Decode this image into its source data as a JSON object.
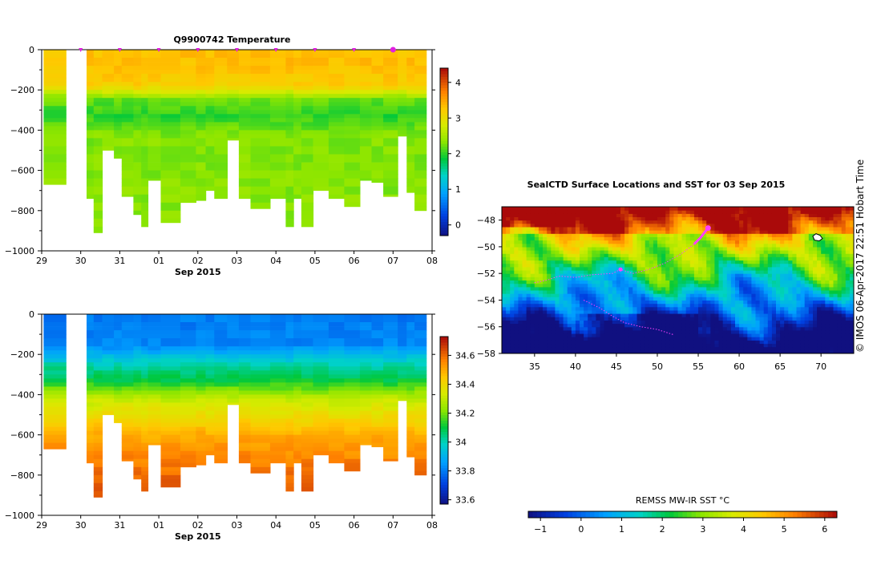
{
  "credit": "© IMOS 06-Apr-2017 22:51 Hobart Time",
  "chart_data": [
    {
      "id": "temperature",
      "type": "heatmap",
      "title": "Q9900742  Temperature",
      "xlabel": "Sep 2015",
      "ylabel": "",
      "xticks": [
        {
          "v": 29,
          "label": "29"
        },
        {
          "v": 30,
          "label": "30"
        },
        {
          "v": 31,
          "label": "31"
        },
        {
          "v": 32,
          "label": "01"
        },
        {
          "v": 33,
          "label": "02"
        },
        {
          "v": 34,
          "label": "03"
        },
        {
          "v": 35,
          "label": "04"
        },
        {
          "v": 36,
          "label": "05"
        },
        {
          "v": 37,
          "label": "06"
        },
        {
          "v": 38,
          "label": "07"
        },
        {
          "v": 39,
          "label": "08"
        }
      ],
      "xlim": [
        29,
        39
      ],
      "ylim": [
        -1000,
        0
      ],
      "yticks": [
        0,
        -200,
        -400,
        -600,
        -800,
        -1000
      ],
      "profile_markers": [
        30,
        31,
        32,
        33,
        34,
        35,
        36,
        37,
        38
      ],
      "current_marker": 38,
      "profiles": [
        {
          "t0": 29.05,
          "t1": 29.62,
          "depth": 670
        },
        {
          "t0": 30.15,
          "t1": 30.33,
          "depth": 740
        },
        {
          "t0": 30.33,
          "t1": 30.55,
          "depth": 910
        },
        {
          "t0": 30.55,
          "t1": 30.85,
          "depth": 500
        },
        {
          "t0": 30.85,
          "t1": 31.05,
          "depth": 540
        },
        {
          "t0": 31.05,
          "t1": 31.35,
          "depth": 730
        },
        {
          "t0": 31.35,
          "t1": 31.55,
          "depth": 820
        },
        {
          "t0": 31.55,
          "t1": 31.72,
          "depth": 880
        },
        {
          "t0": 31.72,
          "t1": 32.05,
          "depth": 650
        },
        {
          "t0": 32.05,
          "t1": 32.55,
          "depth": 860
        },
        {
          "t0": 32.55,
          "t1": 32.95,
          "depth": 760
        },
        {
          "t0": 32.95,
          "t1": 33.2,
          "depth": 750
        },
        {
          "t0": 33.2,
          "t1": 33.42,
          "depth": 700
        },
        {
          "t0": 33.42,
          "t1": 33.75,
          "depth": 740
        },
        {
          "t0": 33.75,
          "t1": 34.05,
          "depth": 450
        },
        {
          "t0": 34.05,
          "t1": 34.35,
          "depth": 740
        },
        {
          "t0": 34.35,
          "t1": 34.85,
          "depth": 790
        },
        {
          "t0": 34.85,
          "t1": 35.25,
          "depth": 740
        },
        {
          "t0": 35.25,
          "t1": 35.45,
          "depth": 880
        },
        {
          "t0": 35.45,
          "t1": 35.65,
          "depth": 740
        },
        {
          "t0": 35.65,
          "t1": 35.95,
          "depth": 880
        },
        {
          "t0": 35.95,
          "t1": 36.35,
          "depth": 700
        },
        {
          "t0": 36.35,
          "t1": 36.75,
          "depth": 740
        },
        {
          "t0": 36.75,
          "t1": 37.15,
          "depth": 780
        },
        {
          "t0": 37.15,
          "t1": 37.45,
          "depth": 650
        },
        {
          "t0": 37.45,
          "t1": 37.75,
          "depth": 660
        },
        {
          "t0": 37.75,
          "t1": 38.12,
          "depth": 730
        },
        {
          "t0": 38.12,
          "t1": 38.35,
          "depth": 430
        },
        {
          "t0": 38.35,
          "t1": 38.55,
          "depth": 710
        },
        {
          "t0": 38.55,
          "t1": 38.85,
          "depth": 800
        }
      ],
      "colorbar": {
        "min": -0.3,
        "max": 4.4,
        "ticks": [
          0,
          1,
          2,
          3,
          4
        ],
        "tick_labels": [
          "0",
          "1",
          "2",
          "3",
          "4"
        ]
      },
      "profile_model": [
        [
          0,
          3.3
        ],
        [
          60,
          3.35
        ],
        [
          180,
          3.2
        ],
        [
          250,
          2.2
        ],
        [
          330,
          2.0
        ],
        [
          420,
          2.3
        ],
        [
          1000,
          2.35
        ]
      ]
    },
    {
      "id": "salinity",
      "type": "heatmap",
      "title": "",
      "xlabel": "Sep 2015",
      "ylabel": "",
      "xticks": [
        {
          "v": 29,
          "label": "29"
        },
        {
          "v": 30,
          "label": "30"
        },
        {
          "v": 31,
          "label": "31"
        },
        {
          "v": 32,
          "label": "01"
        },
        {
          "v": 33,
          "label": "02"
        },
        {
          "v": 34,
          "label": "03"
        },
        {
          "v": 35,
          "label": "04"
        },
        {
          "v": 36,
          "label": "05"
        },
        {
          "v": 37,
          "label": "06"
        },
        {
          "v": 38,
          "label": "07"
        },
        {
          "v": 39,
          "label": "08"
        }
      ],
      "xlim": [
        29,
        39
      ],
      "ylim": [
        -1000,
        0
      ],
      "yticks": [
        0,
        -200,
        -400,
        -600,
        -800,
        -1000
      ],
      "colorbar": {
        "min": 33.57,
        "max": 34.73,
        "ticks": [
          33.6,
          33.8,
          34,
          34.2,
          34.4,
          34.6
        ],
        "tick_labels": [
          "33.6",
          "33.8",
          "34",
          "34.2",
          "34.4",
          "34.6"
        ]
      },
      "profile_model": [
        [
          0,
          33.8
        ],
        [
          150,
          33.82
        ],
        [
          260,
          34.02
        ],
        [
          330,
          34.1
        ],
        [
          420,
          34.3
        ],
        [
          600,
          34.5
        ],
        [
          800,
          34.6
        ],
        [
          1000,
          34.66
        ]
      ]
    },
    {
      "id": "sst_map",
      "type": "heatmap",
      "title": "SealCTD Surface Locations and SST for 03 Sep 2015",
      "xlabel": "",
      "ylabel": "",
      "xlim": [
        31,
        74
      ],
      "ylim": [
        -58,
        -47
      ],
      "xticks": [
        35,
        40,
        45,
        50,
        55,
        60,
        65,
        70
      ],
      "yticks": [
        -48,
        -50,
        -52,
        -54,
        -56,
        -58
      ],
      "colorbar_label": "REMSS MW-IR SST °C",
      "colorbar": {
        "min": -1.3,
        "max": 6.3,
        "ticks": [
          -1,
          0,
          1,
          2,
          3,
          4,
          5,
          6
        ],
        "tick_labels": [
          "-1",
          "0",
          "1",
          "2",
          "3",
          "4",
          "5",
          "6"
        ]
      },
      "track": [
        [
          35,
          -52.7
        ],
        [
          36.5,
          -52.5
        ],
        [
          38,
          -52.2
        ],
        [
          40,
          -52.3
        ],
        [
          42,
          -52.1
        ],
        [
          44.5,
          -52.0
        ],
        [
          45.5,
          -51.7
        ],
        [
          47,
          -52.0
        ],
        [
          49,
          -51.7
        ],
        [
          51,
          -51.2
        ],
        [
          53,
          -50.5
        ],
        [
          54.5,
          -49.8
        ],
        [
          55.3,
          -49.3
        ],
        [
          55.8,
          -48.9
        ],
        [
          56.2,
          -48.6
        ]
      ],
      "track2": [
        [
          41,
          -54.0
        ],
        [
          43,
          -54.6
        ],
        [
          44.5,
          -55.2
        ],
        [
          46,
          -55.7
        ],
        [
          48,
          -56.0
        ],
        [
          50,
          -56.2
        ],
        [
          52,
          -56.6
        ]
      ],
      "current_position": [
        56.2,
        -48.6
      ],
      "deployment_area": [
        69.5,
        -49.5
      ]
    }
  ]
}
